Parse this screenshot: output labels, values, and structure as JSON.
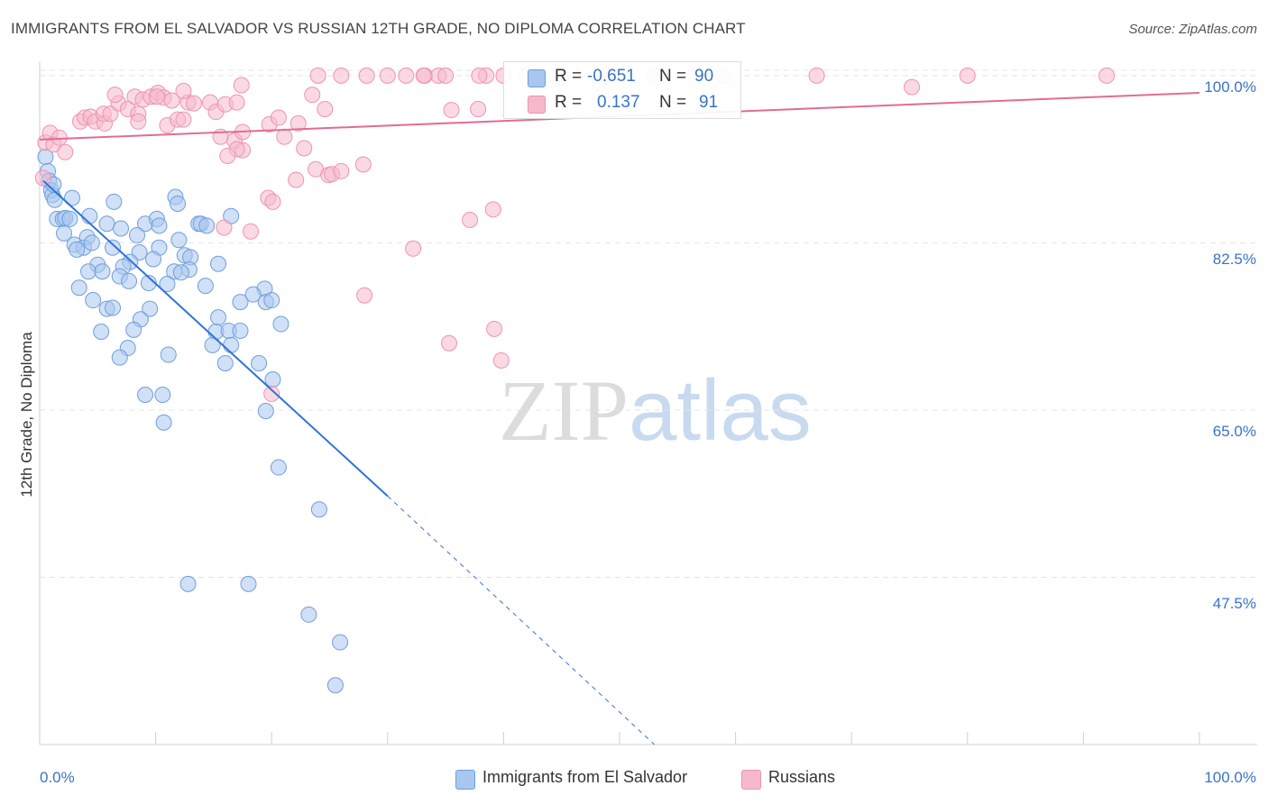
{
  "title": "IMMIGRANTS FROM EL SALVADOR VS RUSSIAN 12TH GRADE, NO DIPLOMA CORRELATION CHART",
  "source": "Source: ZipAtlas.com",
  "watermark": {
    "zip": "ZIP",
    "atlas": "atlas"
  },
  "legend_stats": [
    {
      "r_label": "R =",
      "r_value": "-0.651",
      "n_label": "N =",
      "n_value": "90",
      "color": "#a9c6ee"
    },
    {
      "r_label": "R =",
      "r_value": "0.137",
      "n_label": "N =",
      "n_value": "91",
      "color": "#f6b9cc"
    }
  ],
  "chart_data": {
    "type": "scatter",
    "title": "IMMIGRANTS FROM EL SALVADOR VS RUSSIAN 12TH GRADE, NO DIPLOMA CORRELATION CHART",
    "xlabel": "",
    "ylabel": "12th Grade, No Diploma",
    "xlim": [
      0,
      100
    ],
    "ylim": [
      30,
      101.5
    ],
    "x_tick_labels": [
      "0.0%",
      "100.0%"
    ],
    "y_ticks": [
      47.5,
      65.0,
      82.5,
      100.0
    ],
    "y_tick_labels": [
      "47.5%",
      "65.0%",
      "82.5%",
      "100.0%"
    ],
    "grid": true,
    "legend_position": "bottom",
    "series": [
      {
        "name": "Immigrants from El Salvador",
        "color": "#a9c6ee",
        "stroke": "#6f9fdc",
        "trend_color": "#2f73d6",
        "trend": {
          "x0": 0.3,
          "y0": 89.0,
          "x1": 30.0,
          "y1": 56.0,
          "dash_to_x": 53.0,
          "dash_to_y": 30.0
        },
        "points": [
          [
            0.5,
            91.5
          ],
          [
            0.7,
            90.0
          ],
          [
            0.8,
            89.0
          ],
          [
            1.0,
            88.0
          ],
          [
            1.1,
            87.5
          ],
          [
            1.3,
            87.0
          ],
          [
            2.8,
            87.2
          ],
          [
            6.4,
            86.8
          ],
          [
            11.7,
            87.3
          ],
          [
            11.9,
            86.6
          ],
          [
            1.5,
            85.0
          ],
          [
            2.0,
            85.0
          ],
          [
            2.2,
            85.1
          ],
          [
            4.3,
            85.3
          ],
          [
            5.8,
            84.5
          ],
          [
            7.0,
            84.0
          ],
          [
            9.1,
            84.5
          ],
          [
            10.1,
            85.0
          ],
          [
            10.3,
            84.3
          ],
          [
            13.7,
            84.5
          ],
          [
            13.9,
            84.5
          ],
          [
            16.5,
            85.3
          ],
          [
            4.1,
            83.1
          ],
          [
            8.4,
            83.3
          ],
          [
            2.1,
            83.5
          ],
          [
            12.0,
            82.8
          ],
          [
            3.0,
            82.3
          ],
          [
            3.8,
            82.0
          ],
          [
            4.5,
            82.5
          ],
          [
            3.2,
            81.8
          ],
          [
            6.3,
            82.0
          ],
          [
            10.3,
            82.0
          ],
          [
            8.6,
            81.5
          ],
          [
            9.8,
            80.8
          ],
          [
            12.5,
            81.2
          ],
          [
            13.0,
            81.0
          ],
          [
            7.8,
            80.5
          ],
          [
            5.0,
            80.2
          ],
          [
            7.2,
            80.0
          ],
          [
            15.4,
            80.3
          ],
          [
            4.2,
            79.5
          ],
          [
            5.4,
            79.5
          ],
          [
            11.6,
            79.5
          ],
          [
            12.9,
            79.7
          ],
          [
            6.9,
            79.0
          ],
          [
            7.7,
            78.5
          ],
          [
            11.0,
            78.2
          ],
          [
            14.3,
            78.0
          ],
          [
            3.4,
            77.8
          ],
          [
            19.4,
            77.7
          ],
          [
            4.6,
            76.5
          ],
          [
            17.3,
            76.3
          ],
          [
            19.5,
            76.3
          ],
          [
            20.0,
            76.5
          ],
          [
            5.8,
            75.6
          ],
          [
            6.3,
            75.7
          ],
          [
            9.5,
            75.6
          ],
          [
            15.4,
            74.7
          ],
          [
            8.7,
            74.5
          ],
          [
            20.8,
            74.0
          ],
          [
            5.3,
            73.2
          ],
          [
            8.1,
            73.4
          ],
          [
            15.2,
            73.2
          ],
          [
            16.3,
            73.3
          ],
          [
            17.3,
            73.3
          ],
          [
            14.9,
            71.8
          ],
          [
            16.5,
            71.8
          ],
          [
            7.6,
            71.5
          ],
          [
            11.1,
            70.8
          ],
          [
            6.9,
            70.5
          ],
          [
            16.0,
            69.9
          ],
          [
            18.9,
            69.9
          ],
          [
            20.1,
            68.2
          ],
          [
            9.1,
            66.6
          ],
          [
            10.6,
            66.6
          ],
          [
            19.5,
            64.9
          ],
          [
            10.7,
            63.7
          ],
          [
            20.6,
            59.0
          ],
          [
            24.1,
            54.6
          ],
          [
            12.8,
            46.8
          ],
          [
            18.0,
            46.8
          ],
          [
            23.2,
            43.6
          ],
          [
            25.9,
            40.7
          ],
          [
            25.5,
            36.2
          ],
          [
            1.2,
            88.6
          ],
          [
            2.6,
            85.0
          ],
          [
            14.4,
            84.3
          ],
          [
            9.4,
            78.3
          ],
          [
            12.2,
            79.4
          ],
          [
            18.4,
            77.1
          ]
        ]
      },
      {
        "name": "Russians",
        "color": "#f6b9cc",
        "stroke": "#ee93b1",
        "trend_color": "#e36b94",
        "trend": {
          "x0": 0.0,
          "y0": 93.3,
          "x1": 100.0,
          "y1": 98.2
        },
        "points": [
          [
            0.5,
            93.0
          ],
          [
            0.9,
            94.0
          ],
          [
            1.2,
            92.8
          ],
          [
            1.7,
            93.5
          ],
          [
            2.2,
            92.0
          ],
          [
            3.5,
            95.2
          ],
          [
            3.9,
            95.6
          ],
          [
            4.4,
            95.7
          ],
          [
            4.8,
            95.2
          ],
          [
            5.6,
            95.0
          ],
          [
            5.5,
            96.0
          ],
          [
            6.1,
            96.0
          ],
          [
            6.8,
            97.1
          ],
          [
            6.5,
            98.0
          ],
          [
            7.6,
            96.5
          ],
          [
            8.2,
            97.8
          ],
          [
            8.5,
            96.0
          ],
          [
            8.5,
            95.2
          ],
          [
            8.9,
            97.5
          ],
          [
            9.6,
            97.8
          ],
          [
            10.2,
            98.2
          ],
          [
            10.7,
            97.7
          ],
          [
            10.1,
            97.8
          ],
          [
            11.4,
            97.4
          ],
          [
            11.0,
            94.8
          ],
          [
            11.9,
            95.4
          ],
          [
            12.4,
            95.4
          ],
          [
            12.8,
            97.2
          ],
          [
            12.4,
            98.4
          ],
          [
            13.3,
            97.1
          ],
          [
            14.7,
            97.2
          ],
          [
            15.2,
            96.2
          ],
          [
            16.0,
            97.0
          ],
          [
            17.0,
            97.2
          ],
          [
            17.4,
            99.0
          ],
          [
            15.6,
            93.6
          ],
          [
            16.8,
            93.2
          ],
          [
            17.5,
            92.2
          ],
          [
            17.0,
            92.3
          ],
          [
            16.2,
            91.6
          ],
          [
            17.5,
            94.1
          ],
          [
            19.8,
            94.9
          ],
          [
            20.6,
            95.6
          ],
          [
            21.1,
            93.6
          ],
          [
            22.3,
            95.0
          ],
          [
            23.5,
            98.0
          ],
          [
            22.8,
            92.4
          ],
          [
            24.6,
            96.5
          ],
          [
            23.8,
            90.2
          ],
          [
            24.9,
            89.6
          ],
          [
            25.2,
            89.7
          ],
          [
            26.0,
            90.0
          ],
          [
            27.9,
            90.7
          ],
          [
            22.1,
            89.1
          ],
          [
            19.7,
            87.2
          ],
          [
            20.1,
            86.8
          ],
          [
            18.2,
            83.7
          ],
          [
            15.9,
            84.1
          ],
          [
            37.1,
            84.9
          ],
          [
            35.5,
            96.4
          ],
          [
            37.8,
            96.5
          ],
          [
            39.1,
            86.0
          ],
          [
            32.2,
            81.9
          ],
          [
            28.0,
            77.0
          ],
          [
            35.3,
            72.0
          ],
          [
            39.2,
            73.5
          ],
          [
            39.8,
            70.2
          ],
          [
            20.0,
            66.7
          ],
          [
            24.0,
            100.0
          ],
          [
            26.0,
            100.0
          ],
          [
            28.2,
            100.0
          ],
          [
            30.0,
            100.0
          ],
          [
            31.6,
            100.0
          ],
          [
            33.2,
            100.0
          ],
          [
            34.4,
            100.0
          ],
          [
            35.0,
            100.0
          ],
          [
            38.5,
            100.0
          ],
          [
            40.0,
            100.0
          ],
          [
            42.0,
            100.0
          ],
          [
            49.0,
            100.0
          ],
          [
            53.0,
            100.0
          ],
          [
            59.0,
            100.0
          ],
          [
            67.0,
            100.0
          ],
          [
            80.0,
            100.0
          ],
          [
            92.0,
            100.0
          ],
          [
            75.2,
            98.8
          ],
          [
            42.4,
            96.6
          ],
          [
            48.3,
            99.3
          ],
          [
            37.9,
            100.0
          ],
          [
            33.1,
            100.0
          ],
          [
            0.3,
            89.3
          ]
        ]
      }
    ]
  }
}
